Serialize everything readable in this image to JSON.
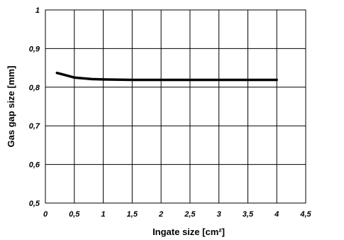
{
  "chart_data": {
    "type": "line",
    "xlabel": "Ingate size [cm²]",
    "ylabel": "Gas gap size [mm]",
    "xlim": [
      0,
      4.5
    ],
    "ylim": [
      0.5,
      1.0
    ],
    "grid": true,
    "legend": "none",
    "x_ticks": [
      0,
      0.5,
      1,
      1.5,
      2,
      2.5,
      3,
      3.5,
      4,
      4.5
    ],
    "x_tick_labels": [
      "0",
      "0,5",
      "1",
      "1,5",
      "2",
      "2,5",
      "3",
      "3,5",
      "4",
      "4,5"
    ],
    "y_ticks": [
      0.5,
      0.6,
      0.7,
      0.8,
      0.9,
      1.0
    ],
    "y_tick_labels": [
      "0,5",
      "0,6",
      "0,7",
      "0,8",
      "0,9",
      "1"
    ],
    "series": [
      {
        "color": "#000000",
        "x": [
          0.2,
          0.3,
          0.5,
          0.8,
          1.0,
          1.5,
          2.0,
          2.5,
          3.0,
          3.5,
          4.0
        ],
        "y": [
          0.837,
          0.833,
          0.825,
          0.821,
          0.82,
          0.819,
          0.819,
          0.819,
          0.819,
          0.819,
          0.819
        ]
      }
    ]
  }
}
